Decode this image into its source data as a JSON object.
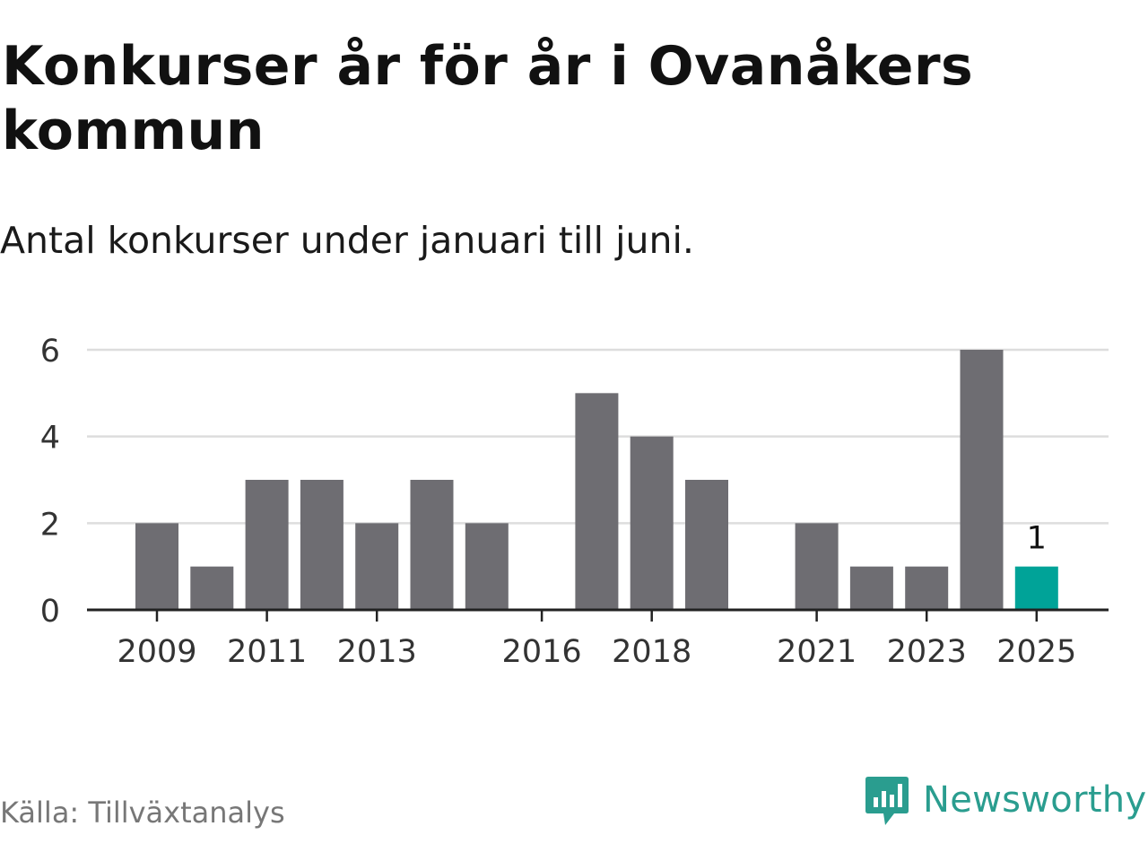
{
  "title": "Konkurser år för år i Ovanåkers kommun",
  "subtitle": "Antal konkurser under januari till juni.",
  "source": "Källa: Tillväxtanalys",
  "brand": {
    "name": "Newsworthy",
    "icon": "newsworthy-logo-icon",
    "color": "#2a9d8f"
  },
  "colors": {
    "bar": "#6e6d72",
    "highlight": "#00a398",
    "grid": "#dddddd",
    "axis": "#222222"
  },
  "chart_data": {
    "type": "bar",
    "title": "Konkurser år för år i Ovanåkers kommun",
    "subtitle": "Antal konkurser under januari till juni.",
    "categories": [
      "2009",
      "2010",
      "2011",
      "2012",
      "2013",
      "2014",
      "2015",
      "2016",
      "2017",
      "2018",
      "2019",
      "2020",
      "2021",
      "2022",
      "2023",
      "2024",
      "2025"
    ],
    "values": [
      2,
      1,
      3,
      3,
      2,
      3,
      2,
      0,
      5,
      4,
      3,
      0,
      2,
      1,
      1,
      6,
      1
    ],
    "x_tick_labels": [
      "2009",
      "2011",
      "2013",
      "2016",
      "2018",
      "2021",
      "2023",
      "2025"
    ],
    "y_ticks": [
      0,
      2,
      4,
      6
    ],
    "ylim": [
      0,
      6
    ],
    "highlight_category": "2025",
    "data_labels": [
      {
        "category": "2025",
        "text": "1"
      }
    ],
    "grid": true,
    "legend": "none",
    "xlabel": "",
    "ylabel": ""
  }
}
